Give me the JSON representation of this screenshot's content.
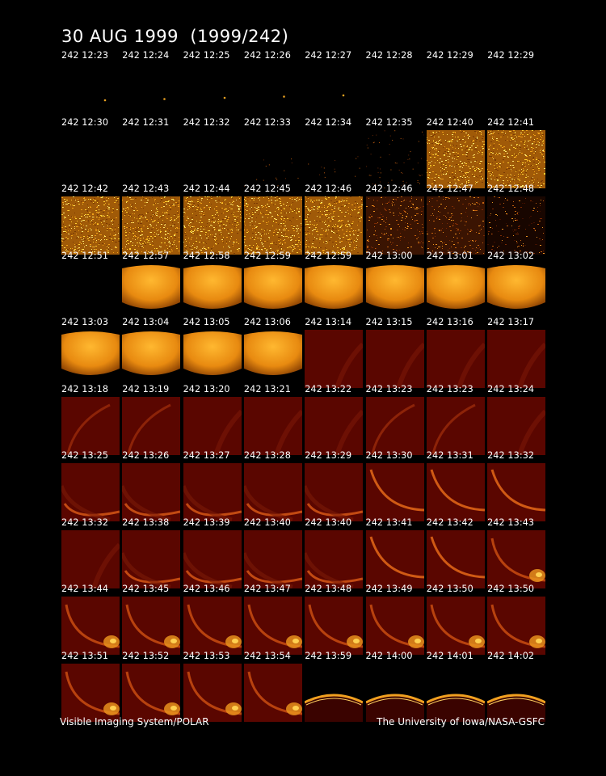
{
  "title": "30 AUG 1999  (1999/242)",
  "credit_left": "Visible Imaging System/POLAR",
  "credit_right": "The University of Iowa/NASA-GSFC",
  "palette": {
    "background": "#000000",
    "deep_red": "#5a0600",
    "dark_red": "#3a0300",
    "orange": "#e87a08",
    "bright": "#ffd030",
    "label": "#ffffff"
  },
  "frames": [
    {
      "label": "242 12:23",
      "kind": "dot"
    },
    {
      "label": "242 12:24",
      "kind": "dot"
    },
    {
      "label": "242 12:25",
      "kind": "dot"
    },
    {
      "label": "242 12:26",
      "kind": "dot"
    },
    {
      "label": "242 12:27",
      "kind": "dot"
    },
    {
      "label": "242 12:28",
      "kind": "blank"
    },
    {
      "label": "242 12:29",
      "kind": "blank"
    },
    {
      "label": "242 12:29",
      "kind": "blank"
    },
    {
      "label": "242 12:30",
      "kind": "blank"
    },
    {
      "label": "242 12:31",
      "kind": "blank"
    },
    {
      "label": "242 12:32",
      "kind": "blank"
    },
    {
      "label": "242 12:33",
      "kind": "specks"
    },
    {
      "label": "242 12:34",
      "kind": "specks"
    },
    {
      "label": "242 12:35",
      "kind": "speckdark"
    },
    {
      "label": "242 12:40",
      "kind": "noise"
    },
    {
      "label": "242 12:41",
      "kind": "noise"
    },
    {
      "label": "242 12:42",
      "kind": "noise"
    },
    {
      "label": "242 12:43",
      "kind": "noise"
    },
    {
      "label": "242 12:44",
      "kind": "noise"
    },
    {
      "label": "242 12:45",
      "kind": "noise"
    },
    {
      "label": "242 12:46",
      "kind": "noise"
    },
    {
      "label": "242 12:46",
      "kind": "noisedark"
    },
    {
      "label": "242 12:47",
      "kind": "noisedark"
    },
    {
      "label": "242 12:48",
      "kind": "noisedarker"
    },
    {
      "label": "242 12:51",
      "kind": "blank"
    },
    {
      "label": "242 12:57",
      "kind": "glow"
    },
    {
      "label": "242 12:58",
      "kind": "glow"
    },
    {
      "label": "242 12:59",
      "kind": "glow"
    },
    {
      "label": "242 12:59",
      "kind": "glow"
    },
    {
      "label": "242 13:00",
      "kind": "glow"
    },
    {
      "label": "242 13:01",
      "kind": "glow"
    },
    {
      "label": "242 13:02",
      "kind": "glow"
    },
    {
      "label": "242 13:03",
      "kind": "glow"
    },
    {
      "label": "242 13:04",
      "kind": "glow"
    },
    {
      "label": "242 13:05",
      "kind": "glow"
    },
    {
      "label": "242 13:06",
      "kind": "glow"
    },
    {
      "label": "242 13:14",
      "kind": "red"
    },
    {
      "label": "242 13:15",
      "kind": "red"
    },
    {
      "label": "242 13:16",
      "kind": "red"
    },
    {
      "label": "242 13:17",
      "kind": "red"
    },
    {
      "label": "242 13:18",
      "kind": "arc1"
    },
    {
      "label": "242 13:19",
      "kind": "arc1"
    },
    {
      "label": "242 13:20",
      "kind": "red"
    },
    {
      "label": "242 13:21",
      "kind": "red"
    },
    {
      "label": "242 13:22",
      "kind": "red"
    },
    {
      "label": "242 13:23",
      "kind": "arc1"
    },
    {
      "label": "242 13:23",
      "kind": "arc1"
    },
    {
      "label": "242 13:24",
      "kind": "red"
    },
    {
      "label": "242 13:25",
      "kind": "arc2"
    },
    {
      "label": "242 13:26",
      "kind": "arc2"
    },
    {
      "label": "242 13:27",
      "kind": "arc2"
    },
    {
      "label": "242 13:28",
      "kind": "arc2"
    },
    {
      "label": "242 13:29",
      "kind": "arc2"
    },
    {
      "label": "242 13:30",
      "kind": "arc3"
    },
    {
      "label": "242 13:31",
      "kind": "arc3"
    },
    {
      "label": "242 13:32",
      "kind": "arc3"
    },
    {
      "label": "242 13:32",
      "kind": "red"
    },
    {
      "label": "242 13:38",
      "kind": "arc2"
    },
    {
      "label": "242 13:39",
      "kind": "arc2"
    },
    {
      "label": "242 13:40",
      "kind": "arc2"
    },
    {
      "label": "242 13:40",
      "kind": "arc2"
    },
    {
      "label": "242 13:41",
      "kind": "arc3"
    },
    {
      "label": "242 13:42",
      "kind": "arc3"
    },
    {
      "label": "242 13:43",
      "kind": "arcspot"
    },
    {
      "label": "242 13:44",
      "kind": "arcspot"
    },
    {
      "label": "242 13:45",
      "kind": "arcspot"
    },
    {
      "label": "242 13:46",
      "kind": "arcspot"
    },
    {
      "label": "242 13:47",
      "kind": "arcspot"
    },
    {
      "label": "242 13:48",
      "kind": "arcspot"
    },
    {
      "label": "242 13:49",
      "kind": "arcspot"
    },
    {
      "label": "242 13:50",
      "kind": "arcspot"
    },
    {
      "label": "242 13:50",
      "kind": "arcspot"
    },
    {
      "label": "242 13:51",
      "kind": "arcspot"
    },
    {
      "label": "242 13:52",
      "kind": "arcspot"
    },
    {
      "label": "242 13:53",
      "kind": "arcspot"
    },
    {
      "label": "242 13:54",
      "kind": "arcspot"
    },
    {
      "label": "242 13:59",
      "kind": "limb"
    },
    {
      "label": "242 14:00",
      "kind": "limb"
    },
    {
      "label": "242 14:01",
      "kind": "limb"
    },
    {
      "label": "242 14:02",
      "kind": "limb"
    }
  ]
}
